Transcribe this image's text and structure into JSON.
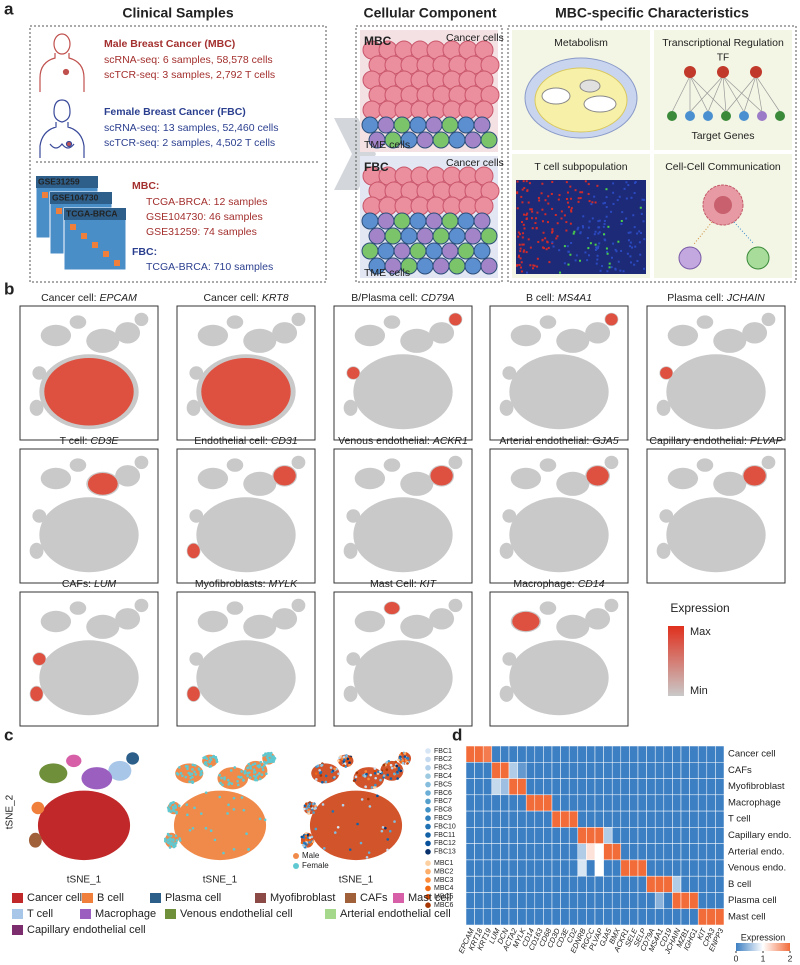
{
  "panel_a": {
    "label": "a",
    "clinical": {
      "title": "Clinical Samples",
      "mbc_title": "Male Breast Cancer (MBC)",
      "mbc_lines": [
        "scRNA-seq: 6 samples, 58,578 cells",
        "scTCR-seq: 3 samples, 2,792 T cells"
      ],
      "fbc_title": "Female Breast Cancer (FBC)",
      "fbc_lines": [
        "scRNA-seq: 13 samples, 52,460 cells",
        "scTCR-seq: 2 samples, 4,502 T cells"
      ],
      "datasets": [
        "GSE31259",
        "GSE104730",
        "TCGA-BRCA"
      ],
      "bulk_mbc_label": "MBC:",
      "bulk_mbc_lines": [
        "TCGA-BRCA: 12 samples",
        "GSE104730: 46 samples",
        "GSE31259: 74 samples"
      ],
      "bulk_fbc_label": "FBC:",
      "bulk_fbc_lines": [
        "TCGA-BRCA: 710 samples"
      ]
    },
    "cellular": {
      "title": "Cellular Component",
      "mbc": "MBC",
      "mbc_cancer": "Cancer cells",
      "mbc_tme": "TME cells",
      "fbc": "FBC",
      "fbc_cancer": "Cancer cells",
      "fbc_tme": "TME cells"
    },
    "characteristics": {
      "title": "MBC-specific Characteristics",
      "boxes": [
        "Metabolism",
        "Transcriptional Regulation",
        "T cell subpopulation",
        "Cell-Cell Communication"
      ],
      "tf": "TF",
      "targets": "Target Genes"
    }
  },
  "panel_b": {
    "label": "b",
    "plots": [
      {
        "cell": "Cancer cell:",
        "gene": "EPCAM"
      },
      {
        "cell": "Cancer cell:",
        "gene": "KRT8"
      },
      {
        "cell": "B/Plasma cell:",
        "gene": "CD79A"
      },
      {
        "cell": "B cell:",
        "gene": "MS4A1"
      },
      {
        "cell": "Plasma cell:",
        "gene": "JCHAIN"
      },
      {
        "cell": "T cell:",
        "gene": "CD3E"
      },
      {
        "cell": "Endothelial cell:",
        "gene": "CD31"
      },
      {
        "cell": "Venous endothelial:",
        "gene": "ACKR1"
      },
      {
        "cell": "Arterial endothelial:",
        "gene": "GJA5"
      },
      {
        "cell": "Capillary endothelial:",
        "gene": "PLVAP"
      },
      {
        "cell": "CAFs:",
        "gene": "LUM"
      },
      {
        "cell": "Myofibroblasts:",
        "gene": "MYLK"
      },
      {
        "cell": "Mast Cell:",
        "gene": "KIT"
      },
      {
        "cell": "Macrophage:",
        "gene": "CD14"
      }
    ],
    "legend": {
      "title": "Expression",
      "max": "Max",
      "min": "Min"
    }
  },
  "panel_c": {
    "label": "c",
    "y_label": "tSNE_2",
    "x_labels": [
      "tSNE_1",
      "tSNE_1",
      "tSNE_1"
    ],
    "sex": [
      {
        "name": "Male",
        "color": "#f08a4b"
      },
      {
        "name": "Female",
        "color": "#5fc8d0"
      }
    ],
    "samples": [
      {
        "name": "FBC1",
        "color": "#d6e6f5"
      },
      {
        "name": "FBC2",
        "color": "#c6dbef"
      },
      {
        "name": "FBC3",
        "color": "#b3d1ea"
      },
      {
        "name": "FBC4",
        "color": "#9ecae1"
      },
      {
        "name": "FBC5",
        "color": "#86bcdc"
      },
      {
        "name": "FBC6",
        "color": "#6baed6"
      },
      {
        "name": "FBC7",
        "color": "#559fcc"
      },
      {
        "name": "FBC8",
        "color": "#4292c6"
      },
      {
        "name": "FBC9",
        "color": "#2f7fbc"
      },
      {
        "name": "FBC10",
        "color": "#2171b5"
      },
      {
        "name": "FBC11",
        "color": "#1361a6"
      },
      {
        "name": "FBC12",
        "color": "#08519c"
      },
      {
        "name": "FBC13",
        "color": "#08306b"
      },
      {
        "name": "MBC1",
        "color": "#fdd0a2"
      },
      {
        "name": "MBC2",
        "color": "#fdae6b"
      },
      {
        "name": "MBC3",
        "color": "#fd8d3c"
      },
      {
        "name": "MBC4",
        "color": "#f16913"
      },
      {
        "name": "MBC5",
        "color": "#d94801"
      },
      {
        "name": "MBC6",
        "color": "#a63603"
      }
    ],
    "cell_types": [
      {
        "name": "Cancer cell",
        "color": "#c0282a"
      },
      {
        "name": "B cell",
        "color": "#f07f3c"
      },
      {
        "name": "Plasma cell",
        "color": "#2b5f8a"
      },
      {
        "name": "Myofibroblast",
        "color": "#8b4a45"
      },
      {
        "name": "CAFs",
        "color": "#a0613a"
      },
      {
        "name": "Mast cell",
        "color": "#d65fa8"
      },
      {
        "name": "T cell",
        "color": "#a8c6e8"
      },
      {
        "name": "Macrophage",
        "color": "#9b5fc0"
      },
      {
        "name": "Venous endothelial cell",
        "color": "#6f8f3a"
      },
      {
        "name": "Arterial endothelial cell",
        "color": "#a5d88a"
      },
      {
        "name": "Capillary endothelial cell",
        "color": "#7b2d6e"
      }
    ]
  },
  "panel_d": {
    "label": "d",
    "rows": [
      "Cancer cell",
      "CAFs",
      "Myofibroblast",
      "Macrophage",
      "T cell",
      "Capillary endo.",
      "Arterial endo.",
      "Venous endo.",
      "B cell",
      "Plasma cell",
      "Mast cell"
    ],
    "genes": [
      "EPCAM",
      "KRT18",
      "KRT19",
      "LUM",
      "DCN",
      "ACTA2",
      "MYLK",
      "CD14",
      "CD163",
      "CD68",
      "CD3D",
      "CD3E",
      "CD2",
      "EDNRB",
      "RGCC",
      "PLVAP",
      "GJA5",
      "BMX",
      "ACKR1",
      "SELE",
      "SELP",
      "CD79A",
      "MS4A1",
      "CD19",
      "JCHAIN",
      "MZB1",
      "IGHG1",
      "KIT",
      "CPA3",
      "ENPP3"
    ],
    "values": [
      [
        2,
        2,
        1.9,
        0,
        0,
        0,
        0,
        0,
        0,
        0,
        0,
        0,
        0,
        0,
        0,
        0,
        0,
        0,
        0,
        0,
        0,
        0,
        0,
        0,
        0,
        0,
        0,
        0,
        0,
        0
      ],
      [
        0,
        0,
        0,
        2,
        2,
        0.6,
        0.2,
        0,
        0,
        0,
        0,
        0,
        0,
        0,
        0,
        0,
        0,
        0,
        0,
        0,
        0,
        0,
        0,
        0,
        0,
        0,
        0,
        0,
        0,
        0
      ],
      [
        0,
        0,
        0,
        0.7,
        0.5,
        2,
        2,
        0,
        0,
        0,
        0,
        0,
        0,
        0,
        0,
        0,
        0,
        0,
        0,
        0,
        0,
        0,
        0,
        0,
        0,
        0,
        0,
        0,
        0,
        0
      ],
      [
        0,
        0,
        0,
        0,
        0,
        0,
        0,
        2,
        2,
        2,
        0,
        0,
        0,
        0,
        0,
        0,
        0,
        0,
        0,
        0,
        0,
        0,
        0,
        0,
        0,
        0,
        0,
        0,
        0,
        0
      ],
      [
        0,
        0,
        0,
        0,
        0,
        0,
        0,
        0,
        0,
        0,
        2,
        2,
        2,
        0,
        0,
        0,
        0,
        0,
        0,
        0,
        0,
        0,
        0,
        0,
        0,
        0,
        0,
        0,
        0,
        0
      ],
      [
        0,
        0,
        0,
        0,
        0,
        0,
        0,
        0,
        0,
        0,
        0,
        0,
        0,
        2,
        2,
        2,
        0.6,
        0,
        0,
        0,
        0,
        0,
        0,
        0,
        0,
        0,
        0,
        0,
        0,
        0
      ],
      [
        0,
        0,
        0,
        0,
        0,
        0,
        0,
        0,
        0,
        0,
        0,
        0,
        0,
        0.6,
        1.2,
        1,
        2,
        2,
        0,
        0,
        0,
        0,
        0,
        0,
        0,
        0,
        0,
        0,
        0,
        0
      ],
      [
        0,
        0,
        0,
        0,
        0,
        0,
        0,
        0,
        0,
        0,
        0,
        0,
        0,
        0.8,
        0,
        1,
        0,
        0,
        2,
        2,
        2,
        0,
        0,
        0,
        0,
        0,
        0,
        0,
        0,
        0
      ],
      [
        0,
        0,
        0,
        0,
        0,
        0,
        0,
        0,
        0,
        0,
        0,
        0,
        0,
        0,
        0,
        0,
        0,
        0,
        0,
        0,
        0,
        2,
        2,
        2,
        0.6,
        0,
        0,
        0,
        0,
        0
      ],
      [
        0,
        0,
        0,
        0,
        0,
        0,
        0,
        0,
        0,
        0,
        0,
        0,
        0,
        0,
        0,
        0,
        0,
        0,
        0,
        0,
        0,
        0,
        0.4,
        0,
        2,
        2,
        2,
        0,
        0,
        0
      ],
      [
        0,
        0,
        0,
        0,
        0,
        0,
        0,
        0,
        0,
        0,
        0,
        0,
        0,
        0,
        0,
        0,
        0,
        0,
        0,
        0,
        0,
        0,
        0,
        0,
        0,
        0,
        0,
        2,
        2,
        2
      ]
    ],
    "colors": [
      "#3d7fc3",
      "#ffffff",
      "#f26c3a"
    ],
    "colorbar": {
      "title": "Expression",
      "ticks": [
        0,
        1,
        2
      ]
    }
  }
}
